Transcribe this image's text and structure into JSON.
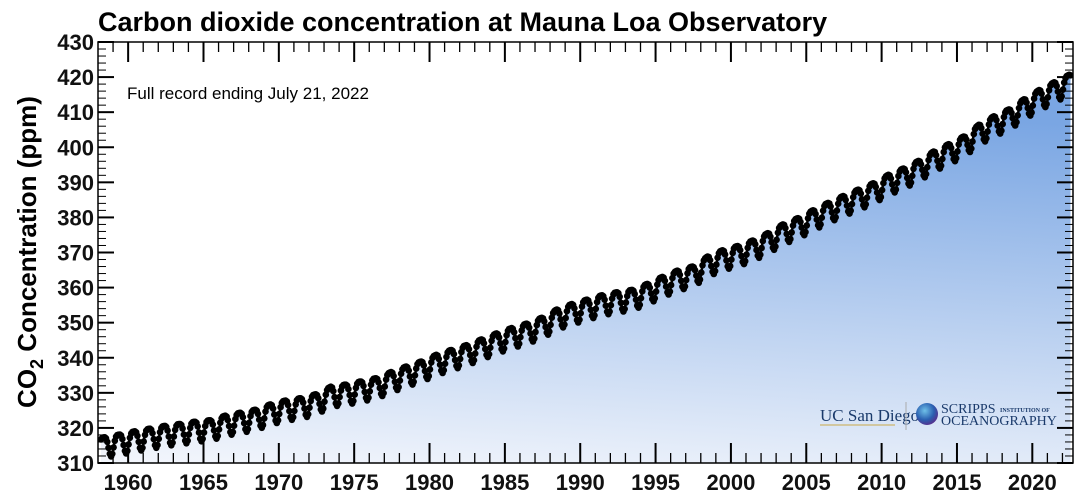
{
  "chart_data": {
    "type": "scatter",
    "title": "Carbon dioxide concentration at Mauna Loa Observatory",
    "annotation": "Full record ending July 21, 2022",
    "ylabel_parts": {
      "main": "CO",
      "sub": "2",
      "rest": " Concentration (ppm)"
    },
    "xlabel": "",
    "xlim": [
      1958,
      2022.7
    ],
    "ylim": [
      310,
      430
    ],
    "x_ticks": [
      "1960",
      "1965",
      "1970",
      "1975",
      "1980",
      "1985",
      "1990",
      "1995",
      "2000",
      "2005",
      "2010",
      "2015",
      "2020"
    ],
    "y_ticks": [
      "310",
      "320",
      "330",
      "340",
      "350",
      "360",
      "370",
      "380",
      "390",
      "400",
      "410",
      "420",
      "430"
    ],
    "grid": false,
    "record_start": "1958-03",
    "record_end": "2022-07",
    "series": [
      {
        "description_of_values": "annual mean CO2 (ppm) with seasonal cycle shown as dots",
        "years": [
          1958,
          1959,
          1960,
          1961,
          1962,
          1963,
          1964,
          1965,
          1966,
          1967,
          1968,
          1969,
          1970,
          1971,
          1972,
          1973,
          1974,
          1975,
          1976,
          1977,
          1978,
          1979,
          1980,
          1981,
          1982,
          1983,
          1984,
          1985,
          1986,
          1987,
          1988,
          1989,
          1990,
          1991,
          1992,
          1993,
          1994,
          1995,
          1996,
          1997,
          1998,
          1999,
          2000,
          2001,
          2002,
          2003,
          2004,
          2005,
          2006,
          2007,
          2008,
          2009,
          2010,
          2011,
          2012,
          2013,
          2014,
          2015,
          2016,
          2017,
          2018,
          2019,
          2020,
          2021,
          2022
        ],
        "annual_mean_ppm": [
          315.2,
          315.98,
          316.91,
          317.64,
          318.45,
          318.99,
          319.62,
          320.04,
          321.37,
          322.18,
          323.05,
          324.62,
          325.68,
          326.32,
          327.46,
          329.68,
          330.19,
          331.12,
          332.03,
          333.84,
          335.41,
          336.84,
          338.76,
          340.12,
          341.48,
          343.15,
          344.85,
          346.35,
          347.61,
          349.31,
          351.69,
          353.2,
          354.45,
          355.7,
          356.54,
          357.21,
          358.96,
          360.97,
          362.74,
          363.88,
          366.84,
          368.54,
          369.71,
          371.32,
          373.45,
          375.98,
          377.7,
          379.98,
          382.09,
          384.02,
          385.83,
          387.64,
          390.1,
          391.85,
          394.06,
          396.74,
          398.81,
          401.01,
          404.41,
          406.76,
          408.72,
          411.66,
          414.24,
          416.45,
          418.6
        ]
      }
    ],
    "marker_color": "#000000",
    "fill_gradient": [
      "#f3f6fc",
      "#7aa6e3"
    ]
  },
  "logos": {
    "ucsd": "UC San Diego",
    "scripps_main": "SCRIPPS",
    "scripps_small": "INSTITUTION OF",
    "scripps_second": "OCEANOGRAPHY"
  }
}
